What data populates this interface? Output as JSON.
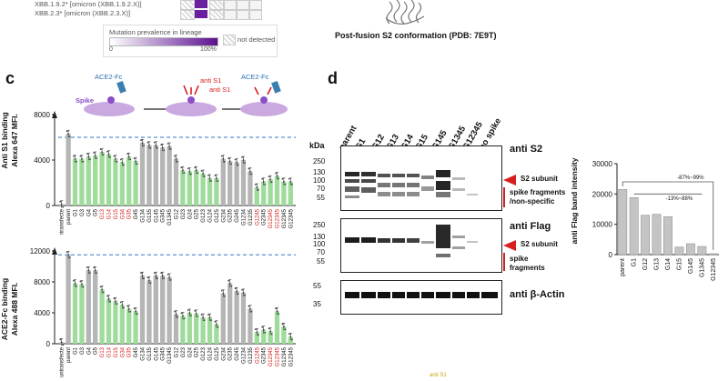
{
  "top": {
    "lineage_rows": [
      "XBB.1.9.2* [omicron (XBB.1.9.2.X)]",
      "XBB.2.3* [omicron (XBB.2.3.X)]"
    ],
    "legend_title": "Mutation prevalence in lineage",
    "legend_min": "0",
    "legend_max": "100%",
    "not_detected": "not detected",
    "structure_caption": "Post-fusion S2 conformation (PDB: 7E9T)"
  },
  "panel_c": {
    "letter": "c",
    "schematic": {
      "ace2_fc_1": "ACE2-Fc",
      "spike": "Spike",
      "anti_s1_1": "anti S1",
      "anti_s1_2": "anti S1",
      "ace2_fc_2": "ACE2-Fc"
    },
    "top_chart_ylabel": "Anti S1 binding",
    "top_chart_ylabel2": "Alexa 647 MFI.",
    "bottom_chart_ylabel": "ACE2-Fc binding",
    "bottom_chart_ylabel2": "Alexa 488 MFI.",
    "footer_label": "anti S1"
  },
  "chart_data": [
    {
      "type": "bar",
      "title": "",
      "ylabel": "Anti S1 binding Alexa 647 MFI.",
      "ylim": [
        0,
        8000
      ],
      "yticks": [
        "0",
        "4000",
        "8000"
      ],
      "reference_line": 6000,
      "categories": [
        "untransfected",
        "parent",
        "G1",
        "G3",
        "G4",
        "G5",
        "G13",
        "G14",
        "G15",
        "G34",
        "G35",
        "G45",
        "G134",
        "G135",
        "G145",
        "G345",
        "G1345",
        "G12",
        "G23",
        "G24",
        "G25",
        "G123",
        "G124",
        "G125",
        "G234",
        "G235",
        "G245",
        "G1234",
        "G1235",
        "G1245",
        "G2345",
        "G12345",
        "G12345b",
        "G12345c",
        "G12345d"
      ],
      "values": [
        100,
        6300,
        4100,
        4100,
        4300,
        4400,
        4700,
        4500,
        4100,
        3800,
        4300,
        3900,
        5500,
        5300,
        5300,
        5100,
        5200,
        4100,
        3100,
        3000,
        3100,
        2800,
        2400,
        2400,
        4100,
        3900,
        3800,
        4000,
        3000,
        1600,
        2100,
        2300,
        2600,
        2100,
        2100
      ],
      "bar_colors": [
        "grey",
        "grey",
        "green",
        "green",
        "green",
        "green",
        "green",
        "green",
        "green",
        "green",
        "green",
        "green",
        "grey",
        "grey",
        "grey",
        "grey",
        "grey",
        "grey",
        "green",
        "green",
        "green",
        "green",
        "green",
        "green",
        "grey",
        "grey",
        "grey",
        "grey",
        "grey",
        "green",
        "green",
        "green",
        "green",
        "green",
        "green"
      ]
    },
    {
      "type": "bar",
      "title": "",
      "ylabel": "ACE2-Fc binding Alexa 488 MFI.",
      "ylim": [
        0,
        12000
      ],
      "yticks": [
        "0",
        "4000",
        "8000",
        "12000"
      ],
      "reference_line": 11500,
      "categories": [
        "untransfected",
        "parent",
        "G1",
        "G3",
        "G4",
        "G5",
        "G13",
        "G14",
        "G15",
        "G34",
        "G35",
        "G45",
        "G134",
        "G135",
        "G145",
        "G345",
        "G1345",
        "G12",
        "G23",
        "G24",
        "G25",
        "G123",
        "G124",
        "G125",
        "G234",
        "G235",
        "G245",
        "G1234",
        "G1235",
        "G1245",
        "G2345",
        "G12345",
        "G12345b",
        "G12345c",
        "G12345d"
      ],
      "values": [
        200,
        11500,
        7800,
        7700,
        9500,
        9500,
        7000,
        5800,
        5500,
        5000,
        4500,
        4200,
        8800,
        8200,
        8800,
        8800,
        8600,
        3800,
        3600,
        4000,
        3900,
        3400,
        3400,
        2500,
        6500,
        7800,
        6800,
        6600,
        4500,
        1500,
        1800,
        1600,
        4200,
        2200,
        900
      ],
      "bar_colors": [
        "grey",
        "grey",
        "green",
        "green",
        "grey",
        "grey",
        "green",
        "green",
        "green",
        "green",
        "green",
        "green",
        "grey",
        "grey",
        "grey",
        "grey",
        "grey",
        "grey",
        "green",
        "green",
        "green",
        "green",
        "green",
        "green",
        "grey",
        "grey",
        "grey",
        "grey",
        "grey",
        "green",
        "green",
        "green",
        "green",
        "green",
        "green"
      ]
    },
    {
      "type": "bar",
      "title": "",
      "xlabel": "",
      "ylabel": "anti Flag band intensity",
      "ylim": [
        0,
        30000
      ],
      "yticks": [
        "0",
        "10000",
        "20000",
        "30000"
      ],
      "categories": [
        "parent",
        "G1",
        "G12",
        "G13",
        "G14",
        "G15",
        "G145",
        "G1345",
        "G12345"
      ],
      "values": [
        21500,
        18800,
        13000,
        13300,
        12500,
        2500,
        3600,
        2700,
        300
      ],
      "annotations": [
        "-87%~99%",
        "-13%~88%"
      ]
    }
  ],
  "panel_d": {
    "letter": "d",
    "kda": "kDa",
    "lanes": [
      "parent",
      "G1",
      "G12",
      "G13",
      "G14",
      "G15",
      "G145",
      "G1345",
      "G12345",
      "no spike"
    ],
    "blot1": {
      "label": "anti S2",
      "markers": [
        "250",
        "130",
        "100",
        "70",
        "55"
      ],
      "arrow_label": "S2 subunit",
      "bracket_label1": "spike fragments",
      "bracket_label2": "/non-specific"
    },
    "blot2": {
      "label": "anti Flag",
      "markers": [
        "250",
        "130",
        "100",
        "70",
        "55"
      ],
      "arrow_label": "S2 subunit",
      "bracket_label1": "spike",
      "bracket_label2": "fragments"
    },
    "blot3": {
      "label": "anti β-Actin",
      "markers": [
        "55",
        "35"
      ]
    }
  },
  "colors": {
    "green": "#9fdc9c",
    "grey": "#b5b5b5",
    "ref_line": "#5b8fd6",
    "red_label": "#d62020",
    "blue_label": "#2a6fb3",
    "purple": "#6a1f9f"
  }
}
